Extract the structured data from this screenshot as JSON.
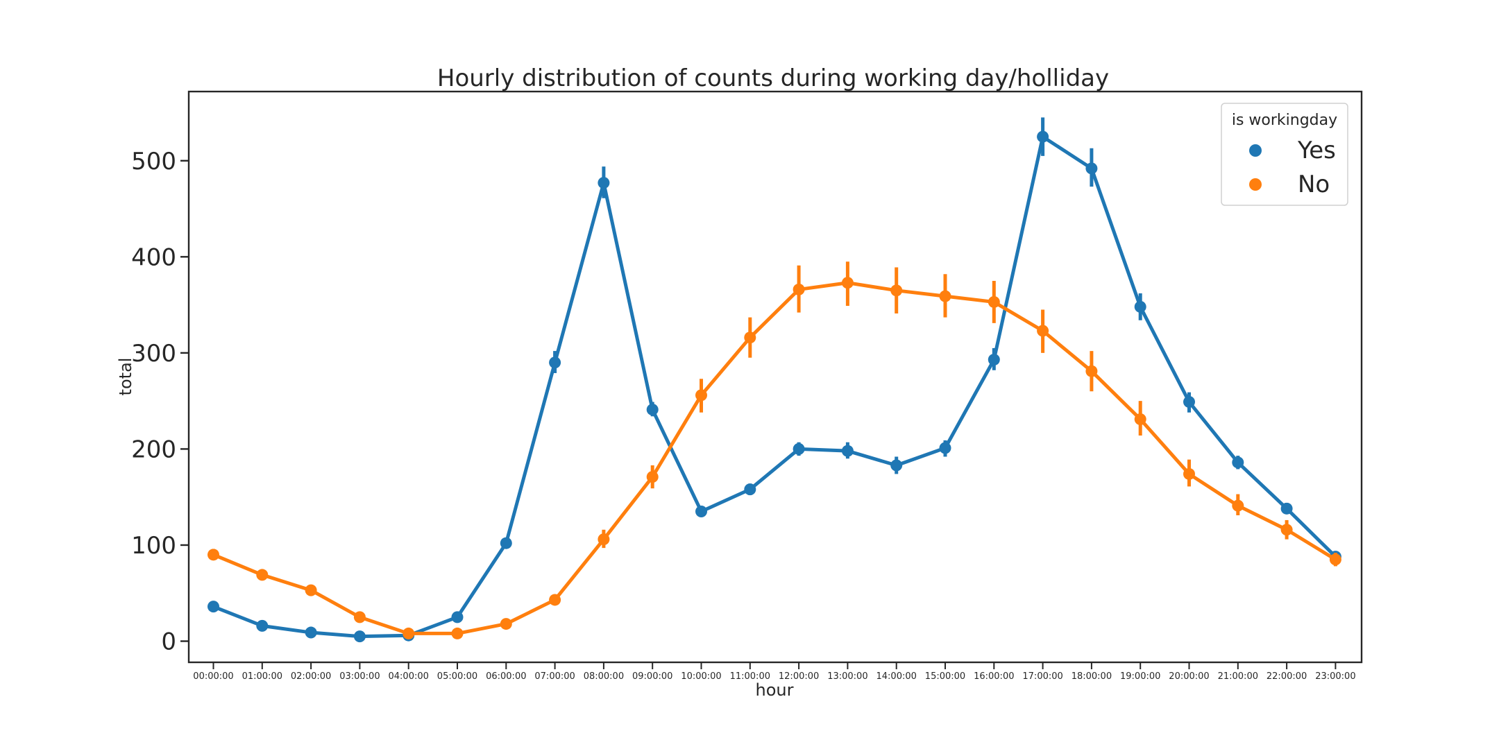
{
  "chart_data": {
    "type": "line",
    "title": "Hourly distribution of counts during working day/holliday",
    "xlabel": "hour",
    "ylabel": "total",
    "categories": [
      "00:00:00",
      "01:00:00",
      "02:00:00",
      "03:00:00",
      "04:00:00",
      "05:00:00",
      "06:00:00",
      "07:00:00",
      "08:00:00",
      "09:00:00",
      "10:00:00",
      "11:00:00",
      "12:00:00",
      "13:00:00",
      "14:00:00",
      "15:00:00",
      "16:00:00",
      "17:00:00",
      "18:00:00",
      "19:00:00",
      "20:00:00",
      "21:00:00",
      "22:00:00",
      "23:00:00"
    ],
    "yticks": [
      "0",
      "100",
      "200",
      "300",
      "400",
      "500"
    ],
    "ylim": [
      -22,
      572
    ],
    "grid": false,
    "legend": {
      "title": "is workingday",
      "placement": "top-right"
    },
    "series": [
      {
        "name": "Yes",
        "color": "#1f77b4",
        "values": [
          36,
          16,
          9,
          5,
          6,
          25,
          102,
          290,
          477,
          241,
          135,
          158,
          200,
          198,
          183,
          201,
          293,
          525,
          492,
          348,
          249,
          186,
          138,
          88
        ],
        "ci_low": [
          33,
          14,
          7,
          4,
          5,
          23,
          98,
          279,
          461,
          234,
          131,
          152,
          193,
          190,
          174,
          192,
          282,
          505,
          473,
          334,
          238,
          179,
          133,
          82
        ],
        "ci_high": [
          39,
          18,
          11,
          7,
          8,
          28,
          106,
          302,
          494,
          249,
          139,
          164,
          207,
          207,
          192,
          209,
          305,
          545,
          513,
          362,
          259,
          193,
          144,
          93
        ]
      },
      {
        "name": "No",
        "color": "#ff7f0e",
        "values": [
          90,
          69,
          53,
          25,
          8,
          8,
          18,
          43,
          106,
          171,
          256,
          316,
          366,
          373,
          365,
          359,
          353,
          323,
          281,
          231,
          174,
          141,
          116,
          85
        ],
        "ci_low": [
          85,
          65,
          49,
          22,
          6,
          6,
          16,
          39,
          97,
          159,
          238,
          295,
          342,
          349,
          341,
          337,
          331,
          300,
          260,
          214,
          161,
          131,
          106,
          78
        ],
        "ci_high": [
          96,
          73,
          58,
          28,
          10,
          11,
          21,
          47,
          116,
          183,
          273,
          337,
          391,
          395,
          389,
          382,
          375,
          345,
          302,
          250,
          189,
          153,
          126,
          92
        ]
      }
    ]
  }
}
